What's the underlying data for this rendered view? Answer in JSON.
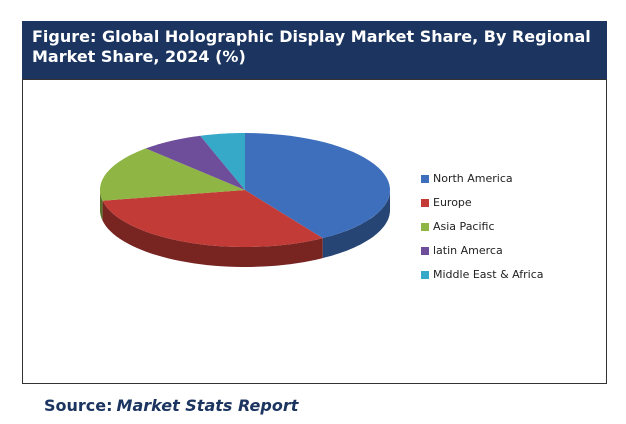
{
  "chart_data": {
    "type": "pie3d",
    "title": "Figure: Global Holographic Display Market Share, By Regional Market Share, 2024 (%)",
    "categories": [
      "North America",
      "Europe",
      "Asia Pacific",
      "latin Amerca",
      "Middle East & Africa"
    ],
    "values": [
      41,
      31,
      16,
      7,
      5
    ],
    "colors": [
      "#3d6fbd",
      "#c23b37",
      "#8fb544",
      "#6e4e9a",
      "#36a8c8"
    ],
    "legend": "right"
  },
  "source": {
    "label": "Source:",
    "name": "Market Stats Report"
  }
}
